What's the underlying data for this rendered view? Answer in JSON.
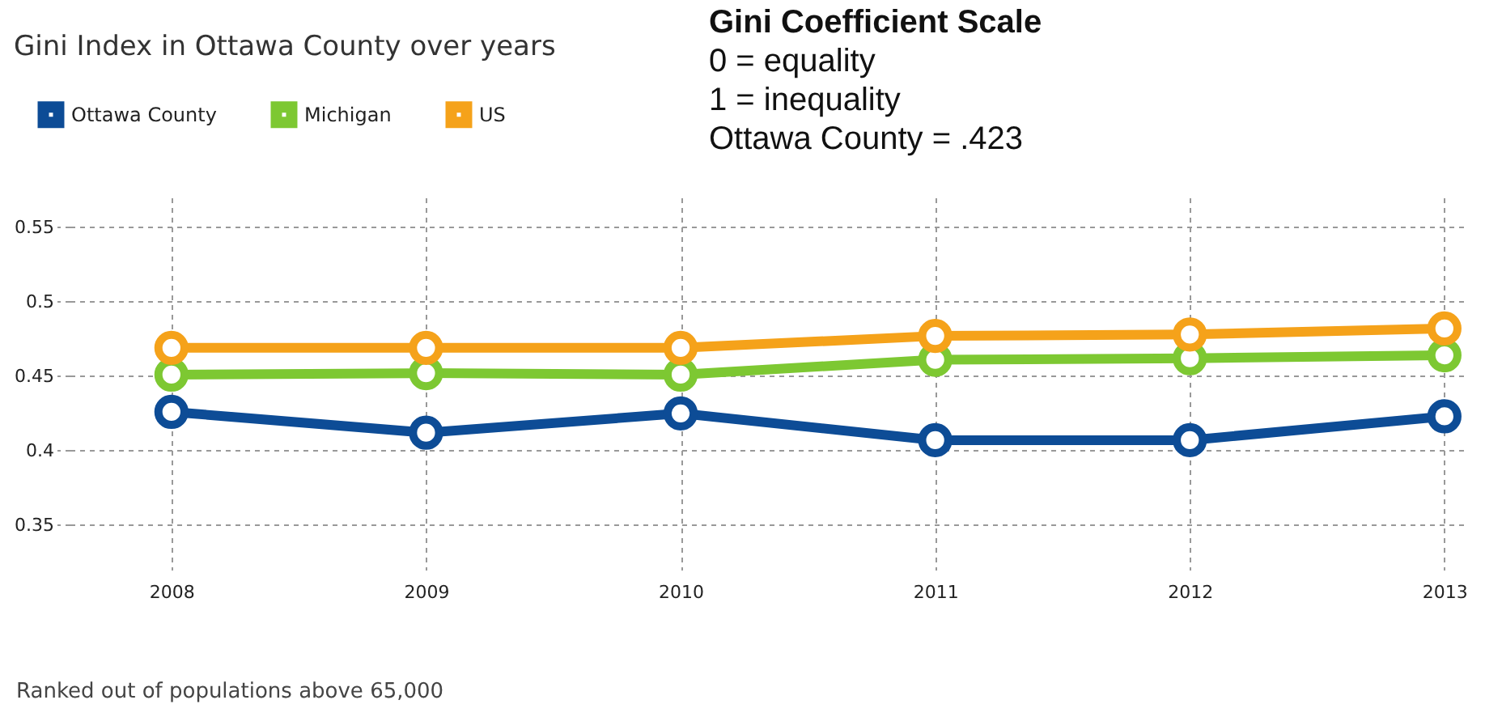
{
  "chart_data": {
    "type": "line",
    "title": "Gini Index in Ottawa County over years",
    "annotations": [
      "Gini Coefficient Scale",
      "0 = equality",
      "1 = inequality",
      "Ottawa County = .423",
      "Ranked out of populations above 65,000"
    ],
    "x": [
      2008,
      2009,
      2010,
      2011,
      2012,
      2013
    ],
    "series": [
      {
        "name": "Ottawa County",
        "color": "#0d4c96",
        "values": [
          0.426,
          0.412,
          0.425,
          0.407,
          0.407,
          0.423
        ]
      },
      {
        "name": "Michigan",
        "color": "#7dc832",
        "values": [
          0.451,
          0.452,
          0.451,
          0.461,
          0.462,
          0.464
        ]
      },
      {
        "name": "US",
        "color": "#f5a21a",
        "values": [
          0.469,
          0.469,
          0.469,
          0.477,
          0.478,
          0.482
        ]
      }
    ],
    "xlim": [
      2007.6,
      2013.08
    ],
    "xticks": [
      2008,
      2009,
      2010,
      2011,
      2012,
      2013
    ],
    "ylim": [
      0.32,
      0.57
    ],
    "yticks": [
      0.35,
      0.4,
      0.45,
      0.5,
      0.55
    ],
    "grid": true,
    "legend": "top left",
    "marker": "circle",
    "line_style": "solid"
  }
}
